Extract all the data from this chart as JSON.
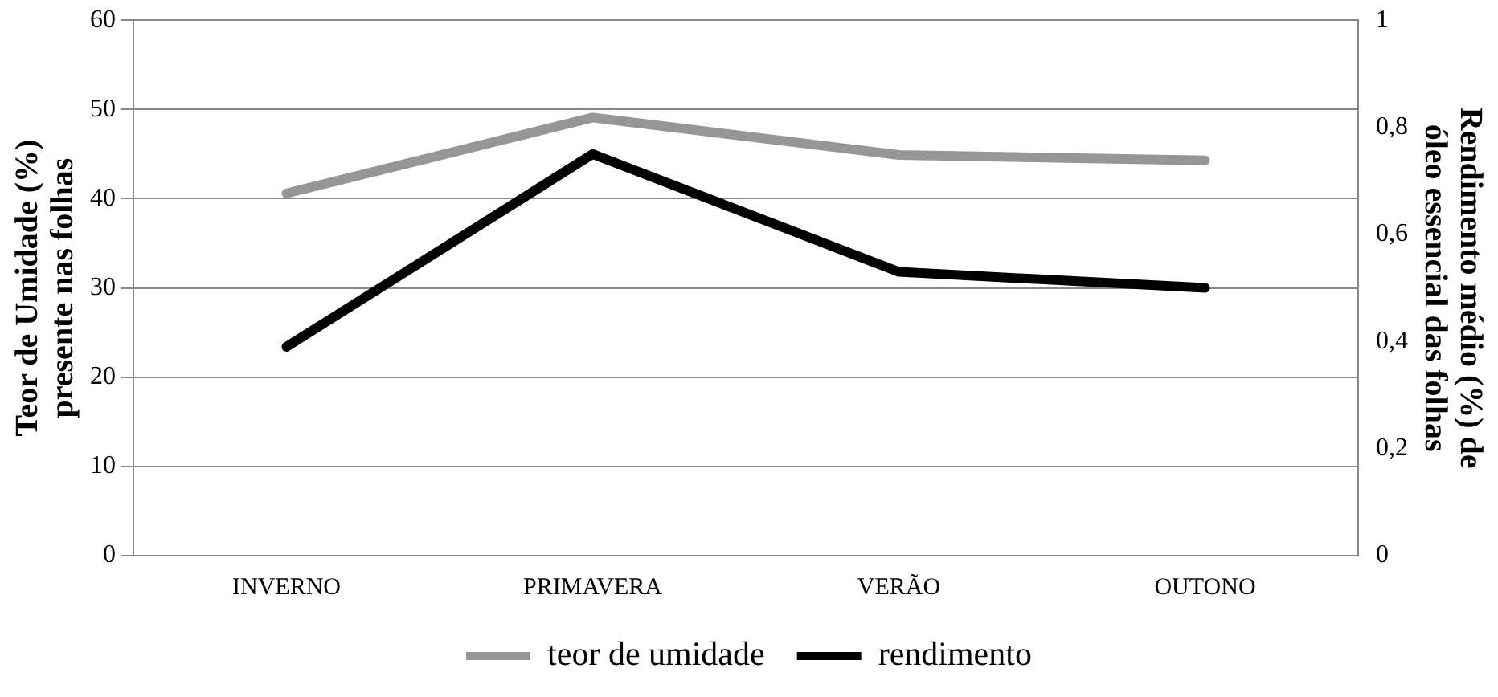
{
  "chart_data": {
    "type": "line",
    "categories": [
      "INVERNO",
      "PRIMAVERA",
      "VERÃO",
      "OUTONO"
    ],
    "ylabel": "Teor de Umidade (%) presente nas folhas",
    "y2label": "Rendimento médio (%) de óleo essencial das folhas",
    "series": [
      {
        "name": "teor de umidade",
        "color": "#969696",
        "values": [
          40.6,
          49.1,
          44.9,
          44.3
        ]
      },
      {
        "name": "rendimento",
        "color": "#000000",
        "axis": "y2",
        "values": [
          0.39,
          0.75,
          0.53,
          0.5
        ]
      }
    ],
    "ylim": [
      0,
      60
    ],
    "yticks": [
      0,
      10,
      20,
      30,
      40,
      50,
      60
    ],
    "y2lim": [
      0,
      1
    ],
    "y2ticks": [
      0,
      {
        "value": 0.2,
        "label": "0,2"
      },
      {
        "value": 0.4,
        "label": "0,4"
      },
      {
        "value": 0.6,
        "label": "0,6"
      },
      {
        "value": 0.8,
        "label": "0,8"
      },
      1
    ],
    "grid": "y",
    "legend": "bottom",
    "marker": "none",
    "line_style": "solid"
  }
}
